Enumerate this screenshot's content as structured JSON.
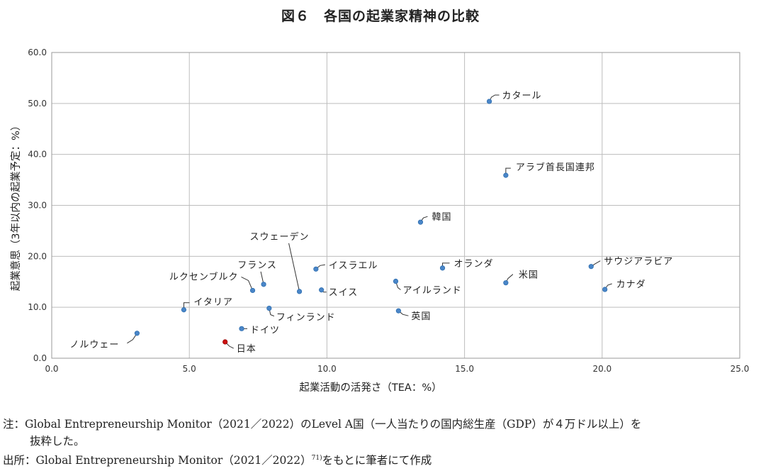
{
  "title": "図６　各国の起業家精神の比較",
  "chart_data": {
    "type": "scatter",
    "xlabel": "起業活動の活発さ（TEA：%）",
    "ylabel": "起業意思（3年以内の起業予定：%）",
    "xlim": [
      0,
      25
    ],
    "ylim": [
      0,
      60
    ],
    "x_ticks": [
      "0.0",
      "5.0",
      "10.0",
      "15.0",
      "20.0",
      "25.0"
    ],
    "y_ticks": [
      "0.0",
      "10.0",
      "20.0",
      "30.0",
      "40.0",
      "50.0",
      "60.0"
    ],
    "grid": true,
    "highlight_color": "#cc1111",
    "point_color": "#4a86c8",
    "points": [
      {
        "label": "カタール",
        "x": 15.9,
        "y": 50.4
      },
      {
        "label": "アラブ首長国連邦",
        "x": 16.5,
        "y": 35.9
      },
      {
        "label": "韓国",
        "x": 13.4,
        "y": 26.7
      },
      {
        "label": "スウェーデン",
        "x": 9.0,
        "y": 13.1
      },
      {
        "label": "イスラエル",
        "x": 9.6,
        "y": 17.5
      },
      {
        "label": "オランダ",
        "x": 14.2,
        "y": 17.7
      },
      {
        "label": "サウジアラビア",
        "x": 19.6,
        "y": 18.0
      },
      {
        "label": "フランス",
        "x": 7.7,
        "y": 14.5
      },
      {
        "label": "ルクセンブルク",
        "x": 7.3,
        "y": 13.3
      },
      {
        "label": "米国",
        "x": 16.5,
        "y": 14.8
      },
      {
        "label": "アイルランド",
        "x": 12.5,
        "y": 15.1
      },
      {
        "label": "スイス",
        "x": 9.8,
        "y": 13.4
      },
      {
        "label": "カナダ",
        "x": 20.1,
        "y": 13.5
      },
      {
        "label": "イタリア",
        "x": 4.8,
        "y": 9.5
      },
      {
        "label": "フィンランド",
        "x": 7.9,
        "y": 9.8
      },
      {
        "label": "英国",
        "x": 12.6,
        "y": 9.3
      },
      {
        "label": "ドイツ",
        "x": 6.9,
        "y": 5.8
      },
      {
        "label": "ノルウェー",
        "x": 3.1,
        "y": 4.9
      },
      {
        "label": "日本",
        "x": 6.3,
        "y": 3.2,
        "highlight": true
      }
    ]
  },
  "notes": {
    "note1": "注：Global Entrepreneurship Monitor（2021／2022）のLevel A国（一人当たりの国内総生産（GDP）が４万ドル以上）を",
    "note2": "抜粋した。",
    "note3_main": "出所：Global Entrepreneurship Monitor（2021／2022）",
    "note3_ref": "71)",
    "note3_tail": "をもとに筆者にて作成"
  }
}
